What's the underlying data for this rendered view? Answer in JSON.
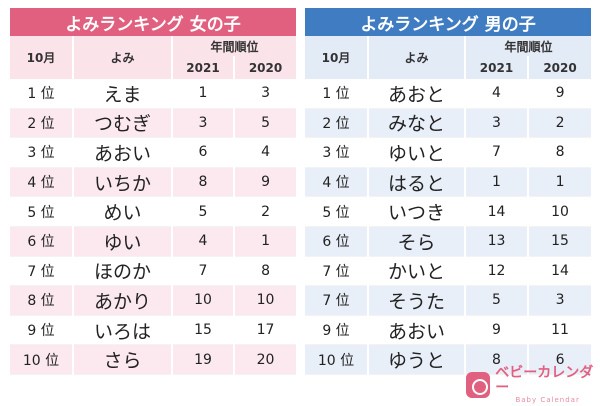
{
  "girls": {
    "title": "よみランキング 女の子",
    "headers": {
      "month": "10月",
      "yomi": "よみ",
      "annual": "年間順位",
      "y2021": "2021",
      "y2020": "2020"
    },
    "rows": [
      {
        "rank": "1 位",
        "yomi": "えま",
        "r2021": "1",
        "r2020": "3"
      },
      {
        "rank": "2 位",
        "yomi": "つむぎ",
        "r2021": "3",
        "r2020": "5"
      },
      {
        "rank": "3 位",
        "yomi": "あおい",
        "r2021": "6",
        "r2020": "4"
      },
      {
        "rank": "4 位",
        "yomi": "いちか",
        "r2021": "8",
        "r2020": "9"
      },
      {
        "rank": "5 位",
        "yomi": "めい",
        "r2021": "5",
        "r2020": "2"
      },
      {
        "rank": "6 位",
        "yomi": "ゆい",
        "r2021": "4",
        "r2020": "1"
      },
      {
        "rank": "7 位",
        "yomi": "ほのか",
        "r2021": "7",
        "r2020": "8"
      },
      {
        "rank": "8 位",
        "yomi": "あかり",
        "r2021": "10",
        "r2020": "10"
      },
      {
        "rank": "9 位",
        "yomi": "いろは",
        "r2021": "15",
        "r2020": "17"
      },
      {
        "rank": "10 位",
        "yomi": "さら",
        "r2021": "19",
        "r2020": "20"
      }
    ]
  },
  "boys": {
    "title": "よみランキング 男の子",
    "headers": {
      "month": "10月",
      "yomi": "よみ",
      "annual": "年間順位",
      "y2021": "2021",
      "y2020": "2020"
    },
    "rows": [
      {
        "rank": "1 位",
        "yomi": "あおと",
        "r2021": "4",
        "r2020": "9"
      },
      {
        "rank": "2 位",
        "yomi": "みなと",
        "r2021": "3",
        "r2020": "2"
      },
      {
        "rank": "3 位",
        "yomi": "ゆいと",
        "r2021": "7",
        "r2020": "8"
      },
      {
        "rank": "4 位",
        "yomi": "はると",
        "r2021": "1",
        "r2020": "1"
      },
      {
        "rank": "5 位",
        "yomi": "いつき",
        "r2021": "14",
        "r2020": "10"
      },
      {
        "rank": "6 位",
        "yomi": "そら",
        "r2021": "13",
        "r2020": "15"
      },
      {
        "rank": "7 位",
        "yomi": "かいと",
        "r2021": "12",
        "r2020": "14"
      },
      {
        "rank": "7 位",
        "yomi": "そうた",
        "r2021": "5",
        "r2020": "3"
      },
      {
        "rank": "9 位",
        "yomi": "あおい",
        "r2021": "9",
        "r2020": "11"
      },
      {
        "rank": "10 位",
        "yomi": "ゆうと",
        "r2021": "8",
        "r2020": "6"
      }
    ]
  },
  "logo": {
    "name": "ベビーカレンダー",
    "sub": "Baby Calendar"
  },
  "colors": {
    "girls_accent": "#e2607f",
    "boys_accent": "#3f7cc2"
  }
}
